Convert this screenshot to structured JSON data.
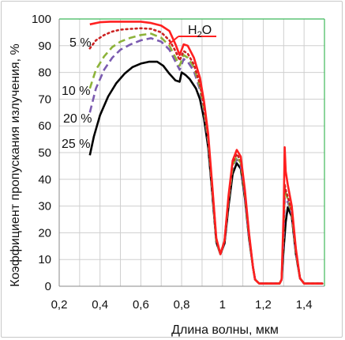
{
  "chart_data": {
    "type": "line",
    "title": "",
    "xlabel": "Длина волны, мкм",
    "ylabel": "Коэффициент пропускания излучения, %",
    "xlim": [
      0.2,
      1.5
    ],
    "ylim": [
      0,
      100
    ],
    "xticks": [
      "0,2",
      "0,4",
      "0,6",
      "0,8",
      "1",
      "1,2",
      "1,4"
    ],
    "yticks": [
      "0",
      "10",
      "20",
      "30",
      "40",
      "50",
      "60",
      "70",
      "80",
      "90",
      "100"
    ],
    "grid": true,
    "legend": "inline labels",
    "series": [
      {
        "name": "H2O",
        "color": "#ff2020",
        "style": "solid",
        "points": [
          [
            0.35,
            98.0
          ],
          [
            0.4,
            98.8
          ],
          [
            0.45,
            99.0
          ],
          [
            0.5,
            99.0
          ],
          [
            0.55,
            99.0
          ],
          [
            0.6,
            99.0
          ],
          [
            0.65,
            98.5
          ],
          [
            0.7,
            97.5
          ],
          [
            0.74,
            95.5
          ],
          [
            0.77,
            90.5
          ],
          [
            0.79,
            86.5
          ],
          [
            0.81,
            90.5
          ],
          [
            0.83,
            90.0
          ],
          [
            0.86,
            85.5
          ],
          [
            0.89,
            78.0
          ],
          [
            0.91,
            69.0
          ],
          [
            0.93,
            57.0
          ],
          [
            0.95,
            38.0
          ],
          [
            0.97,
            18.0
          ],
          [
            0.99,
            12.0
          ],
          [
            1.01,
            17.0
          ],
          [
            1.03,
            34.0
          ],
          [
            1.05,
            47.0
          ],
          [
            1.07,
            51.0
          ],
          [
            1.09,
            48.5
          ],
          [
            1.11,
            36.0
          ],
          [
            1.13,
            20.0
          ],
          [
            1.15,
            7.0
          ],
          [
            1.16,
            2.5
          ],
          [
            1.18,
            1.0
          ],
          [
            1.22,
            1.0
          ],
          [
            1.26,
            1.0
          ],
          [
            1.28,
            1.0
          ],
          [
            1.29,
            2.5
          ],
          [
            1.3,
            28.0
          ],
          [
            1.305,
            52.0
          ],
          [
            1.31,
            43.0
          ],
          [
            1.32,
            38.0
          ],
          [
            1.34,
            30.0
          ],
          [
            1.36,
            14.0
          ],
          [
            1.38,
            3.0
          ],
          [
            1.4,
            1.0
          ],
          [
            1.45,
            1.0
          ],
          [
            1.49,
            1.0
          ]
        ]
      },
      {
        "name": "5 %",
        "color": "#cc2222",
        "style": "dotted",
        "points": [
          [
            0.35,
            89.0
          ],
          [
            0.38,
            92.0
          ],
          [
            0.42,
            94.0
          ],
          [
            0.46,
            95.3
          ],
          [
            0.5,
            96.0
          ],
          [
            0.55,
            96.3
          ],
          [
            0.6,
            96.5
          ],
          [
            0.65,
            96.3
          ],
          [
            0.7,
            95.0
          ],
          [
            0.74,
            92.0
          ],
          [
            0.77,
            88.0
          ],
          [
            0.79,
            84.5
          ],
          [
            0.81,
            88.0
          ],
          [
            0.83,
            87.0
          ],
          [
            0.86,
            83.0
          ],
          [
            0.89,
            75.5
          ],
          [
            0.91,
            67.0
          ],
          [
            0.93,
            55.5
          ],
          [
            0.95,
            37.0
          ],
          [
            0.97,
            17.5
          ],
          [
            0.99,
            12.0
          ],
          [
            1.01,
            17.0
          ],
          [
            1.03,
            33.0
          ],
          [
            1.05,
            46.0
          ],
          [
            1.07,
            49.5
          ],
          [
            1.09,
            47.0
          ],
          [
            1.11,
            35.0
          ],
          [
            1.13,
            19.5
          ],
          [
            1.15,
            7.0
          ],
          [
            1.16,
            2.5
          ],
          [
            1.18,
            1.0
          ],
          [
            1.28,
            1.0
          ],
          [
            1.29,
            2.5
          ],
          [
            1.3,
            22.0
          ],
          [
            1.305,
            38.0
          ],
          [
            1.31,
            36.0
          ],
          [
            1.32,
            33.5
          ],
          [
            1.34,
            28.0
          ],
          [
            1.36,
            13.5
          ],
          [
            1.38,
            3.0
          ],
          [
            1.4,
            1.0
          ],
          [
            1.49,
            1.0
          ]
        ]
      },
      {
        "name": "10 %",
        "color": "#8db33a",
        "style": "dashed",
        "points": [
          [
            0.35,
            74.0
          ],
          [
            0.38,
            81.0
          ],
          [
            0.42,
            86.0
          ],
          [
            0.46,
            89.5
          ],
          [
            0.5,
            91.5
          ],
          [
            0.55,
            93.0
          ],
          [
            0.6,
            94.0
          ],
          [
            0.65,
            94.5
          ],
          [
            0.7,
            93.0
          ],
          [
            0.74,
            90.0
          ],
          [
            0.77,
            85.5
          ],
          [
            0.79,
            82.5
          ],
          [
            0.81,
            86.5
          ],
          [
            0.83,
            85.5
          ],
          [
            0.86,
            82.0
          ],
          [
            0.89,
            74.5
          ],
          [
            0.91,
            66.0
          ],
          [
            0.93,
            55.0
          ],
          [
            0.95,
            36.5
          ],
          [
            0.97,
            17.0
          ],
          [
            0.99,
            12.0
          ],
          [
            1.01,
            17.0
          ],
          [
            1.03,
            32.5
          ],
          [
            1.05,
            45.0
          ],
          [
            1.07,
            48.5
          ],
          [
            1.09,
            46.0
          ],
          [
            1.11,
            34.5
          ],
          [
            1.13,
            19.0
          ],
          [
            1.15,
            7.0
          ],
          [
            1.16,
            2.5
          ],
          [
            1.18,
            1.0
          ],
          [
            1.28,
            1.0
          ],
          [
            1.29,
            2.5
          ],
          [
            1.3,
            22.0
          ],
          [
            1.305,
            38.0
          ],
          [
            1.31,
            35.0
          ],
          [
            1.32,
            32.5
          ],
          [
            1.34,
            27.5
          ],
          [
            1.36,
            13.0
          ],
          [
            1.38,
            3.0
          ],
          [
            1.4,
            1.0
          ],
          [
            1.49,
            1.0
          ]
        ]
      },
      {
        "name": "20 %",
        "color": "#7b5bb0",
        "style": "dashed",
        "points": [
          [
            0.35,
            65.0
          ],
          [
            0.38,
            74.0
          ],
          [
            0.42,
            81.0
          ],
          [
            0.46,
            85.5
          ],
          [
            0.5,
            88.5
          ],
          [
            0.55,
            90.5
          ],
          [
            0.6,
            92.0
          ],
          [
            0.65,
            92.8
          ],
          [
            0.7,
            91.5
          ],
          [
            0.74,
            88.5
          ],
          [
            0.77,
            84.0
          ],
          [
            0.79,
            81.0
          ],
          [
            0.81,
            85.0
          ],
          [
            0.83,
            84.0
          ],
          [
            0.86,
            80.5
          ],
          [
            0.89,
            73.5
          ],
          [
            0.91,
            65.0
          ],
          [
            0.93,
            54.0
          ],
          [
            0.95,
            36.0
          ],
          [
            0.97,
            17.0
          ],
          [
            0.99,
            12.0
          ],
          [
            1.01,
            16.5
          ],
          [
            1.03,
            32.0
          ],
          [
            1.05,
            44.5
          ],
          [
            1.07,
            47.5
          ],
          [
            1.09,
            45.0
          ],
          [
            1.11,
            34.0
          ],
          [
            1.13,
            18.5
          ],
          [
            1.15,
            7.0
          ],
          [
            1.16,
            2.5
          ],
          [
            1.18,
            1.0
          ],
          [
            1.28,
            1.0
          ],
          [
            1.29,
            2.5
          ],
          [
            1.3,
            18.0
          ],
          [
            1.305,
            33.0
          ],
          [
            1.31,
            32.0
          ],
          [
            1.32,
            31.5
          ],
          [
            1.34,
            27.0
          ],
          [
            1.36,
            12.5
          ],
          [
            1.38,
            3.0
          ],
          [
            1.4,
            1.0
          ],
          [
            1.49,
            1.0
          ]
        ]
      },
      {
        "name": "25 %",
        "color": "#000000",
        "style": "solid",
        "points": [
          [
            0.35,
            49.0
          ],
          [
            0.37,
            56.0
          ],
          [
            0.4,
            64.0
          ],
          [
            0.44,
            71.0
          ],
          [
            0.48,
            76.0
          ],
          [
            0.52,
            79.5
          ],
          [
            0.56,
            82.0
          ],
          [
            0.6,
            83.3
          ],
          [
            0.64,
            84.0
          ],
          [
            0.68,
            84.0
          ],
          [
            0.71,
            82.5
          ],
          [
            0.74,
            79.5
          ],
          [
            0.77,
            77.0
          ],
          [
            0.79,
            76.5
          ],
          [
            0.8,
            80.0
          ],
          [
            0.82,
            79.0
          ],
          [
            0.84,
            77.5
          ],
          [
            0.87,
            74.0
          ],
          [
            0.89,
            70.0
          ],
          [
            0.91,
            62.5
          ],
          [
            0.93,
            52.0
          ],
          [
            0.95,
            35.0
          ],
          [
            0.97,
            16.5
          ],
          [
            0.99,
            12.0
          ],
          [
            1.01,
            16.0
          ],
          [
            1.03,
            30.0
          ],
          [
            1.05,
            42.0
          ],
          [
            1.07,
            46.0
          ],
          [
            1.09,
            44.0
          ],
          [
            1.11,
            33.0
          ],
          [
            1.13,
            18.0
          ],
          [
            1.15,
            7.0
          ],
          [
            1.16,
            2.5
          ],
          [
            1.18,
            1.0
          ],
          [
            1.28,
            1.0
          ],
          [
            1.29,
            2.5
          ],
          [
            1.3,
            14.0
          ],
          [
            1.31,
            24.0
          ],
          [
            1.32,
            29.5
          ],
          [
            1.34,
            26.0
          ],
          [
            1.36,
            12.0
          ],
          [
            1.38,
            3.0
          ],
          [
            1.4,
            1.0
          ],
          [
            1.49,
            1.0
          ]
        ]
      }
    ],
    "annotations": [
      {
        "text": "5 %"
      },
      {
        "text": "10 %"
      },
      {
        "text": "20 %"
      },
      {
        "text": "25 %"
      }
    ],
    "h2o_label": {
      "main": "H",
      "sub": "2",
      "tail": "O"
    }
  }
}
